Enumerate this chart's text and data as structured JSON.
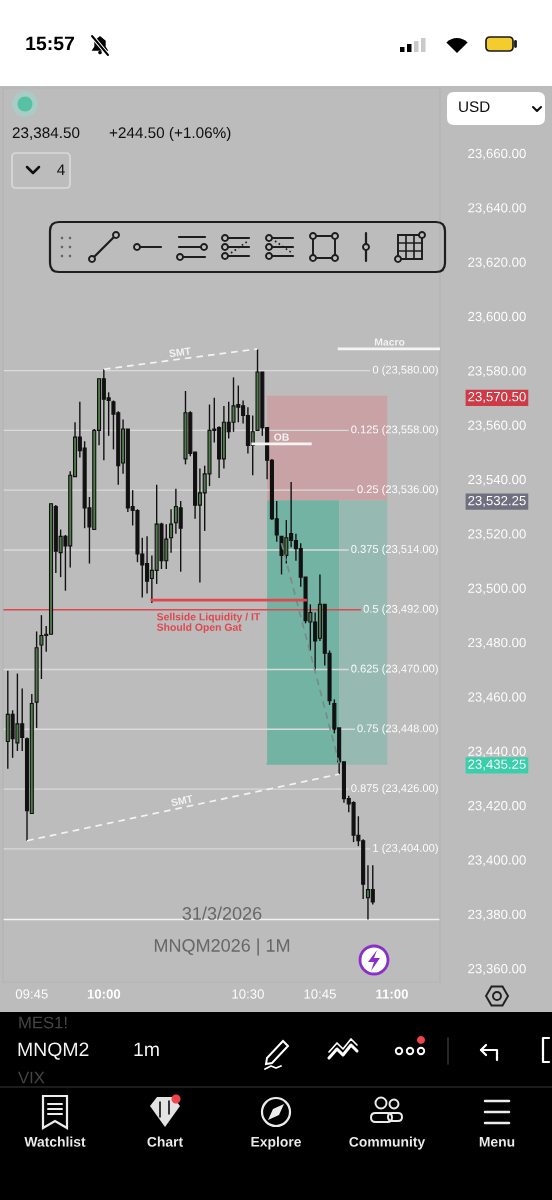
{
  "chart_data": {
    "type": "candlestick",
    "title": "MNQM2026 | 1M",
    "subtitle": "31/3/2026",
    "x": [
      "2026-03-31T09:40",
      "2026-03-31T09:41",
      "2026-03-31T09:42",
      "2026-03-31T09:43",
      "2026-03-31T09:44",
      "2026-03-31T09:45",
      "2026-03-31T09:46",
      "2026-03-31T09:47",
      "2026-03-31T09:48",
      "2026-03-31T09:49",
      "2026-03-31T09:50",
      "2026-03-31T09:51",
      "2026-03-31T09:52",
      "2026-03-31T09:53",
      "2026-03-31T09:54",
      "2026-03-31T09:55",
      "2026-03-31T09:56",
      "2026-03-31T09:57",
      "2026-03-31T09:58",
      "2026-03-31T09:59",
      "2026-03-31T10:00",
      "2026-03-31T10:01",
      "2026-03-31T10:02",
      "2026-03-31T10:03",
      "2026-03-31T10:04",
      "2026-03-31T10:05",
      "2026-03-31T10:06",
      "2026-03-31T10:07",
      "2026-03-31T10:08",
      "2026-03-31T10:09",
      "2026-03-31T10:10",
      "2026-03-31T10:11",
      "2026-03-31T10:12",
      "2026-03-31T10:13",
      "2026-03-31T10:14",
      "2026-03-31T10:15",
      "2026-03-31T10:16",
      "2026-03-31T10:17",
      "2026-03-31T10:18",
      "2026-03-31T10:19",
      "2026-03-31T10:20",
      "2026-03-31T10:21",
      "2026-03-31T10:22",
      "2026-03-31T10:23",
      "2026-03-31T10:24",
      "2026-03-31T10:25",
      "2026-03-31T10:26",
      "2026-03-31T10:27",
      "2026-03-31T10:28",
      "2026-03-31T10:29",
      "2026-03-31T10:30",
      "2026-03-31T10:31",
      "2026-03-31T10:32",
      "2026-03-31T10:33",
      "2026-03-31T10:34",
      "2026-03-31T10:35",
      "2026-03-31T10:36",
      "2026-03-31T10:37",
      "2026-03-31T10:38",
      "2026-03-31T10:39",
      "2026-03-31T10:40",
      "2026-03-31T10:41",
      "2026-03-31T10:42",
      "2026-03-31T10:43",
      "2026-03-31T10:44",
      "2026-03-31T10:45",
      "2026-03-31T10:46",
      "2026-03-31T10:47",
      "2026-03-31T10:48",
      "2026-03-31T10:49",
      "2026-03-31T10:50",
      "2026-03-31T10:51",
      "2026-03-31T10:52",
      "2026-03-31T10:53",
      "2026-03-31T10:54",
      "2026-03-31T10:55",
      "2026-03-31T10:56"
    ],
    "ohlc": [
      [
        23443.5,
        23469.5,
        23433.5,
        23453.5
      ],
      [
        23453.5,
        23455,
        23437.5,
        23444.5
      ],
      [
        23443,
        23468.5,
        23440,
        23450
      ],
      [
        23450,
        23463,
        23440,
        23445
      ],
      [
        23444.5,
        23445,
        23407,
        23418
      ],
      [
        23417,
        23461,
        23417,
        23457.5
      ],
      [
        23458,
        23484,
        23448.5,
        23478
      ],
      [
        23479,
        23490,
        23466.5,
        23482.5
      ],
      [
        23482.5,
        23486,
        23476.5,
        23483
      ],
      [
        23483,
        23531,
        23483,
        23531
      ],
      [
        23530,
        23530.5,
        23505.5,
        23513.5
      ],
      [
        23513,
        23521.5,
        23504,
        23519
      ],
      [
        23519,
        23519.5,
        23499,
        23515.5
      ],
      [
        23515.5,
        23543,
        23507.5,
        23541.5
      ],
      [
        23541,
        23561,
        23541,
        23555.5
      ],
      [
        23555.5,
        23568.5,
        23548,
        23550.5
      ],
      [
        23551.5,
        23554,
        23522,
        23529.5
      ],
      [
        23529.5,
        23533.5,
        23509,
        23522.5
      ],
      [
        23521.5,
        23558.5,
        23521.5,
        23558
      ],
      [
        23558,
        23577,
        23552.5,
        23577
      ],
      [
        23577,
        23580.5,
        23547,
        23569.5
      ],
      [
        23570,
        23572,
        23556,
        23569
      ],
      [
        23568.5,
        23569,
        23551,
        23564
      ],
      [
        23564.5,
        23565,
        23538,
        23545
      ],
      [
        23546,
        23562,
        23542,
        23558.5
      ],
      [
        23558.5,
        23558.5,
        23528,
        23529.5
      ],
      [
        23530,
        23536,
        23523,
        23528.5
      ],
      [
        23528.5,
        23529,
        23509.5,
        23512.5
      ],
      [
        23512.5,
        23518.5,
        23496.5,
        23508.5
      ],
      [
        23509,
        23519,
        23498,
        23502.5
      ],
      [
        23503.5,
        23512,
        23494.5,
        23506.5
      ],
      [
        23506.5,
        23538,
        23501.5,
        23523.5
      ],
      [
        23523.5,
        23524,
        23507,
        23510
      ],
      [
        23510,
        23523.5,
        23507,
        23518
      ],
      [
        23518.5,
        23529,
        23513,
        23523.5
      ],
      [
        23524,
        23536.5,
        23520,
        23530
      ],
      [
        23529.5,
        23532,
        23506,
        23522
      ],
      [
        23547.5,
        23572.5,
        23545.5,
        23564.5
      ],
      [
        23564.5,
        23565,
        23548.5,
        23549.5
      ],
      [
        23550,
        23550,
        23525.5,
        23530.5
      ],
      [
        23530.5,
        23544,
        23502,
        23535
      ],
      [
        23535,
        23545,
        23521,
        23542
      ],
      [
        23542,
        23567.5,
        23537.5,
        23558
      ],
      [
        23558.5,
        23570,
        23553.5,
        23558
      ],
      [
        23559,
        23559.5,
        23540.5,
        23547.5
      ],
      [
        23547.5,
        23567,
        23544,
        23561
      ],
      [
        23561,
        23568.5,
        23555,
        23557.5
      ],
      [
        23561,
        23577.5,
        23557.5,
        23567
      ],
      [
        23567.5,
        23574.5,
        23561,
        23566.5
      ],
      [
        23567,
        23569,
        23560.5,
        23563.5
      ],
      [
        23563.5,
        23566.5,
        23549.5,
        23552.5
      ],
      [
        23552.5,
        23563.5,
        23541.5,
        23557.5
      ],
      [
        23558,
        23588,
        23558,
        23579.5
      ],
      [
        23579.5,
        23579.5,
        23556,
        23559
      ],
      [
        23559,
        23559,
        23540,
        23547
      ],
      [
        23547,
        23547.5,
        23525,
        23525.5
      ],
      [
        23525.5,
        23532,
        23517,
        23519.5
      ],
      [
        23519,
        23519,
        23505,
        23512
      ],
      [
        23512,
        23525,
        23509,
        23518.5
      ],
      [
        23520,
        23539,
        23515,
        23517.5
      ],
      [
        23517.5,
        23520,
        23510,
        23514.5
      ],
      [
        23514.5,
        23516.5,
        23500.5,
        23504
      ],
      [
        23504,
        23504,
        23487,
        23488
      ],
      [
        23487.5,
        23494,
        23477,
        23491
      ],
      [
        23487.5,
        23491,
        23470,
        23480.5
      ],
      [
        23481.5,
        23505,
        23480.5,
        23494
      ],
      [
        23494,
        23494,
        23471.5,
        23476
      ],
      [
        23476,
        23477,
        23457,
        23458.5
      ],
      [
        23457.5,
        23459,
        23446.5,
        23448
      ],
      [
        23448.5,
        23448.5,
        23431.5,
        23436
      ],
      [
        23436,
        23436,
        23421,
        23422.5
      ],
      [
        23422.5,
        23423.5,
        23417.5,
        23420.5
      ],
      [
        23421,
        23421.5,
        23406.5,
        23409
      ],
      [
        23409,
        23416,
        23405,
        23407
      ],
      [
        23407,
        23407.5,
        23385.5,
        23391
      ],
      [
        23386,
        23398,
        23378,
        23389
      ],
      [
        23389,
        23398,
        23383.5,
        23384.5
      ]
    ],
    "colors": [
      "#4f7d4a",
      "#111111",
      "#4f7d4a",
      "#111111",
      "#111111",
      "#4f7d4a",
      "#4f7d4a",
      "#4f7d4a",
      "#4f7d4a",
      "#4f7d4a",
      "#111111",
      "#4f7d4a",
      "#111111",
      "#4f7d4a",
      "#4f7d4a",
      "#111111",
      "#111111",
      "#111111",
      "#4f7d4a",
      "#4f7d4a",
      "#111111",
      "#111111",
      "#111111",
      "#111111",
      "#4f7d4a",
      "#111111",
      "#111111",
      "#111111",
      "#111111",
      "#111111",
      "#4f7d4a",
      "#4f7d4a",
      "#111111",
      "#4f7d4a",
      "#4f7d4a",
      "#4f7d4a",
      "#111111",
      "#4f7d4a",
      "#111111",
      "#111111",
      "#4f7d4a",
      "#4f7d4a",
      "#4f7d4a",
      "#111111",
      "#111111",
      "#4f7d4a",
      "#111111",
      "#4f7d4a",
      "#111111",
      "#111111",
      "#111111",
      "#4f7d4a",
      "#4f7d4a",
      "#111111",
      "#111111",
      "#111111",
      "#111111",
      "#111111",
      "#4f7d4a",
      "#111111",
      "#111111",
      "#111111",
      "#111111",
      "#4f7d4a",
      "#111111",
      "#4f7d4a",
      "#111111",
      "#111111",
      "#111111",
      "#111111",
      "#111111",
      "#111111",
      "#111111",
      "#111111",
      "#111111",
      "#4f7d4a",
      "#111111"
    ],
    "xlim": [
      "2026-03-31T09:39",
      "2026-03-31T11:10"
    ],
    "ylim": [
      23355,
      23684
    ],
    "xticks": [
      {
        "value": "2026-03-31T09:45",
        "label": "09:45"
      },
      {
        "value": "2026-03-31T10:00",
        "label": "10:00"
      },
      {
        "value": "2026-03-31T10:30",
        "label": "10:30"
      },
      {
        "value": "2026-03-31T10:45",
        "label": "10:45"
      },
      {
        "value": "2026-03-31T11:00",
        "label": "11:00"
      }
    ],
    "yticks": [
      {
        "value": 23660,
        "label": "23,660.00"
      },
      {
        "value": 23640,
        "label": "23,640.00"
      },
      {
        "value": 23620,
        "label": "23,620.00"
      },
      {
        "value": 23600,
        "label": "23,600.00"
      },
      {
        "value": 23580,
        "label": "23,580.00"
      },
      {
        "value": 23570.5,
        "label": "23,570.50"
      },
      {
        "value": 23560,
        "label": "23,560.00"
      },
      {
        "value": 23540,
        "label": "23,540.00"
      },
      {
        "value": 23532.25,
        "label": "23,532.25"
      },
      {
        "value": 23520,
        "label": "23,520.00"
      },
      {
        "value": 23500,
        "label": "23,500.00"
      },
      {
        "value": 23480,
        "label": "23,480.00"
      },
      {
        "value": 23460,
        "label": "23,460.00"
      },
      {
        "value": 23440,
        "label": "23,440.00"
      },
      {
        "value": 23435.25,
        "label": "23,435.25"
      },
      {
        "value": 23420,
        "label": "23,420.00"
      },
      {
        "value": 23400,
        "label": "23,400.00"
      },
      {
        "value": 23380,
        "label": "23,380.00"
      },
      {
        "value": 23360,
        "label": "23,360.00"
      }
    ],
    "series": [
      {
        "type": "line",
        "line_style": "solid",
        "color": "#c9a2a5",
        "x": [
          "2026-03-31T10:34",
          "2026-03-31T10:59"
        ],
        "values": [
          23570.5,
          23570.5
        ],
        "upper": [
          23570.5,
          23570.5
        ],
        "lower": [
          23532.25,
          23532.25
        ]
      },
      {
        "type": "line",
        "line_style": "solid",
        "color": "#72b3a3",
        "x": [
          "2026-03-31T10:34",
          "2026-03-31T10:49"
        ],
        "values": [
          23435.25,
          23435.25
        ],
        "upper": [
          23532.25,
          23532.25
        ],
        "lower": [
          23435.25,
          23435.25
        ]
      },
      {
        "type": "line",
        "line_style": "solid",
        "color": "#96bab2",
        "x": [
          "2026-03-31T10:49",
          "2026-03-31T10:59"
        ],
        "values": [
          23435.25,
          23435.25
        ],
        "upper": [
          23532.25,
          23532.25
        ],
        "lower": [
          23435.25,
          23435.25
        ]
      },
      {
        "type": "line",
        "line_style": "dashed",
        "color": "#7b8a86",
        "x": [
          "2026-03-31T10:37",
          "2026-03-31T10:49"
        ],
        "values": [
          23516.5,
          23435.5
        ]
      },
      {
        "type": "line",
        "name": "SMT",
        "line_style": "dashed",
        "color": "#f4f4f4",
        "x": [
          "2026-03-31T10:00",
          "2026-03-31T10:32"
        ],
        "values": [
          23580.5,
          23588
        ]
      },
      {
        "type": "line",
        "name": "SMT",
        "line_style": "dashed",
        "color": "#f4f4f4",
        "x": [
          "2026-03-31T09:44",
          "2026-03-31T10:49"
        ],
        "values": [
          23407,
          23431.5
        ]
      },
      {
        "type": "line",
        "name": "OB",
        "line_style": "solid",
        "color": "#f4f4f4",
        "x": [
          "2026-03-31T10:31",
          "2026-03-31T10:43"
        ],
        "values": [
          23553,
          23553
        ]
      },
      {
        "type": "line",
        "name": "Macro",
        "line_style": "solid",
        "color": "#f4f4f4",
        "x": [
          "2026-03-31T10:49",
          "2026-03-31T11:10"
        ],
        "values": [
          23588,
          23588
        ]
      },
      {
        "type": "line",
        "line_style": "solid",
        "color": "#e3454c",
        "x": [
          "2026-03-31T10:10",
          "2026-03-31T10:42"
        ],
        "values": [
          23495.5,
          23495.5
        ]
      }
    ],
    "ref_lines": [
      {
        "axis": "y",
        "value": 23580,
        "label": "0 (23,580.00)",
        "color": "#dadada"
      },
      {
        "axis": "y",
        "value": 23558,
        "label": "0.125 (23,558.00)",
        "color": "#dadada"
      },
      {
        "axis": "y",
        "value": 23536,
        "label": "0.25 (23,536.00)",
        "color": "#dadada"
      },
      {
        "axis": "y",
        "value": 23514,
        "label": "0.375 (23,514.00)",
        "color": "#dadada"
      },
      {
        "axis": "y",
        "value": 23492,
        "label": "0.5 (23,492.00)",
        "color": "#e3454c"
      },
      {
        "axis": "y",
        "value": 23470,
        "label": "0.625 (23,470.00)",
        "color": "#dadada"
      },
      {
        "axis": "y",
        "value": 23448,
        "label": "0.75 (23,448.00)",
        "color": "#dadada"
      },
      {
        "axis": "y",
        "value": 23426,
        "label": "0.875 (23,426.00)",
        "color": "#dadada"
      },
      {
        "axis": "y",
        "value": 23404,
        "label": "1 (23,404.00)",
        "color": "#dadada"
      },
      {
        "axis": "y",
        "value": 23378,
        "color": "#f2f2f2"
      }
    ],
    "annotations": [
      "15:57",
      "23,384.50",
      "+244.50 (+1.06%)",
      "4",
      "USD",
      "MES1!",
      "MNQM2",
      "1m",
      "VIX",
      "Watchlist",
      "Chart",
      "Explore",
      "Community",
      "Menu",
      {
        "text": "Sellside Liquidity / IT Should Open Gat",
        "x": "2026-03-31T10:11",
        "y": 23492
      }
    ]
  }
}
